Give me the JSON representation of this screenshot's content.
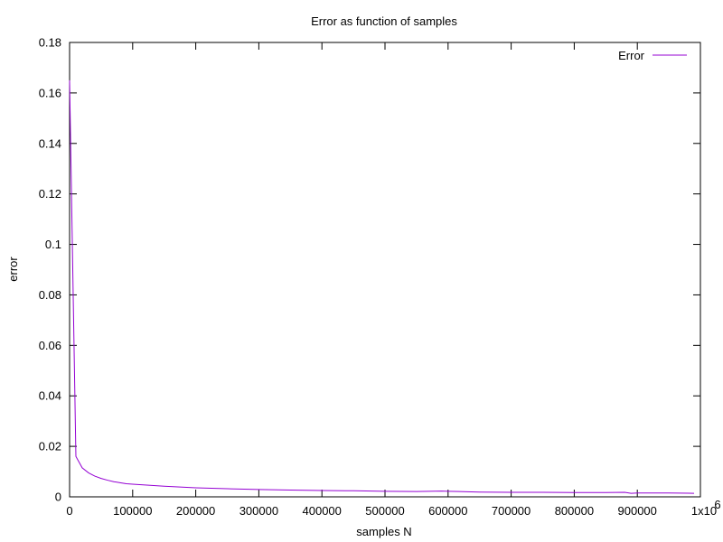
{
  "chart_data": {
    "type": "line",
    "title": "Error as function of samples",
    "xlabel": "samples N",
    "ylabel": "error",
    "xlim": [
      0,
      1000000
    ],
    "ylim": [
      0,
      0.18
    ],
    "x_ticks": [
      0,
      100000,
      200000,
      300000,
      400000,
      500000,
      600000,
      700000,
      800000,
      900000,
      1000000
    ],
    "x_tick_labels": [
      "0",
      "100000",
      "200000",
      "300000",
      "400000",
      "500000",
      "600000",
      "700000",
      "800000",
      "900000",
      "1x10"
    ],
    "x_tick_last_exponent": "6",
    "y_ticks": [
      0,
      0.02,
      0.04,
      0.06,
      0.08,
      0.1,
      0.12,
      0.14,
      0.16,
      0.18
    ],
    "y_tick_labels": [
      "0",
      "0.02",
      "0.04",
      "0.06",
      "0.08",
      "0.1",
      "0.12",
      "0.14",
      "0.16",
      "0.18"
    ],
    "grid": false,
    "legend_position": "top-right",
    "series": [
      {
        "name": "Error",
        "color": "#9400d3",
        "x": [
          0,
          10000,
          20000,
          30000,
          40000,
          50000,
          60000,
          70000,
          80000,
          90000,
          100000,
          150000,
          200000,
          250000,
          300000,
          350000,
          400000,
          450000,
          500000,
          550000,
          590000,
          600000,
          650000,
          700000,
          750000,
          800000,
          850000,
          880000,
          890000,
          900000,
          950000,
          990000
        ],
        "y": [
          0.165,
          0.016,
          0.0115,
          0.0095,
          0.0082,
          0.0073,
          0.0066,
          0.006,
          0.0056,
          0.0052,
          0.005,
          0.0042,
          0.0036,
          0.0032,
          0.0029,
          0.0027,
          0.0025,
          0.0024,
          0.0022,
          0.0021,
          0.0023,
          0.0022,
          0.0019,
          0.0018,
          0.0018,
          0.0017,
          0.0017,
          0.0018,
          0.0014,
          0.0015,
          0.0015,
          0.0014
        ]
      }
    ]
  }
}
